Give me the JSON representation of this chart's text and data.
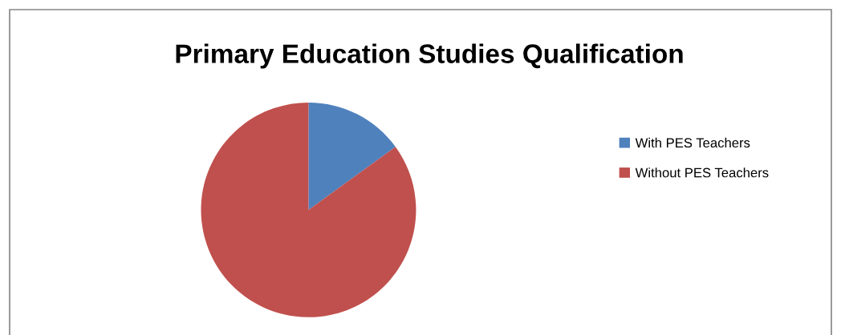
{
  "chart_data": {
    "type": "pie",
    "title": "Primary Education Studies Qualification",
    "categories": [
      "With PES Teachers",
      "Without PES Teachers"
    ],
    "values": [
      15,
      85
    ],
    "colors": [
      "#4f81bd",
      "#c0504d"
    ],
    "legend": "right"
  }
}
